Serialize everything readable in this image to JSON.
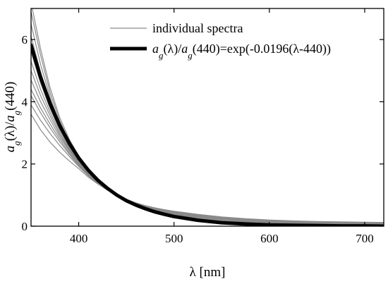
{
  "chart_data": {
    "type": "line",
    "xlabel": "λ [nm]",
    "ylabel": {
      "parts": [
        {
          "text": "a",
          "italic": true
        },
        {
          "text": "g",
          "italic": true,
          "sub": true
        },
        {
          "text": "(λ)/",
          "italic": false
        },
        {
          "text": "a",
          "italic": true
        },
        {
          "text": "g",
          "italic": true,
          "sub": true
        },
        {
          "text": "(440)",
          "italic": false
        }
      ]
    },
    "xlim": [
      350,
      720
    ],
    "ylim": [
      0,
      7
    ],
    "xticks": [
      400,
      500,
      600,
      700
    ],
    "yticks": [
      0,
      2,
      4,
      6
    ],
    "xtick_labels": [
      "400",
      "500",
      "600",
      "700"
    ],
    "ytick_labels": [
      "0",
      "2",
      "4",
      "6"
    ],
    "grid": false,
    "legend": {
      "placement": "top-right",
      "entries": [
        {
          "series": "individual spectra",
          "label": "individual spectra",
          "style": "thin-gray"
        },
        {
          "series": "model",
          "label": "ag(λ)/ag(440)=exp(-0.0196(λ-440))",
          "style": "thick-black",
          "label_parts": [
            {
              "text": "a",
              "italic": true
            },
            {
              "text": "g",
              "italic": true,
              "sub": true
            },
            {
              "text": "(λ)/",
              "italic": false
            },
            {
              "text": "a",
              "italic": true
            },
            {
              "text": "g",
              "italic": true,
              "sub": true
            },
            {
              "text": "(440)=exp(-0.0196(λ-440))",
              "italic": false
            }
          ]
        }
      ]
    },
    "x": [
      350,
      360,
      370,
      380,
      390,
      400,
      410,
      420,
      430,
      440,
      450,
      460,
      470,
      480,
      490,
      500,
      525,
      550,
      575,
      600,
      625,
      650,
      675,
      700,
      720
    ],
    "series": [
      {
        "name": "model",
        "role": "model",
        "color": "#000000",
        "values": [
          5.82,
          4.79,
          3.94,
          3.24,
          2.67,
          2.19,
          1.8,
          1.48,
          1.22,
          1.0,
          0.82,
          0.68,
          0.56,
          0.46,
          0.38,
          0.31,
          0.19,
          0.11,
          0.07,
          0.04,
          0.03,
          0.02,
          0.01,
          0.01,
          0.0
        ]
      },
      {
        "name": "individual spectra",
        "role": "individual",
        "color": "#8a8a8a",
        "values": [
          7.2,
          5.7,
          4.45,
          3.5,
          2.8,
          2.25,
          1.83,
          1.49,
          1.22,
          1.0,
          0.82,
          0.68,
          0.57,
          0.48,
          0.41,
          0.35,
          0.24,
          0.17,
          0.12,
          0.09,
          0.07,
          0.06,
          0.05,
          0.04,
          0.04
        ]
      },
      {
        "name": "individual spectra",
        "role": "individual",
        "color": "#8a8a8a",
        "values": [
          6.9,
          5.5,
          4.3,
          3.4,
          2.72,
          2.2,
          1.8,
          1.47,
          1.21,
          1.0,
          0.83,
          0.69,
          0.58,
          0.49,
          0.42,
          0.36,
          0.25,
          0.18,
          0.13,
          0.1,
          0.08,
          0.07,
          0.06,
          0.05,
          0.05
        ]
      },
      {
        "name": "individual spectra",
        "role": "individual",
        "color": "#8a8a8a",
        "values": [
          6.5,
          5.2,
          4.15,
          3.3,
          2.66,
          2.16,
          1.77,
          1.46,
          1.21,
          1.0,
          0.83,
          0.7,
          0.59,
          0.5,
          0.43,
          0.37,
          0.26,
          0.19,
          0.14,
          0.11,
          0.09,
          0.08,
          0.07,
          0.06,
          0.06
        ]
      },
      {
        "name": "individual spectra",
        "role": "individual",
        "color": "#8a8a8a",
        "values": [
          6.1,
          4.95,
          4.0,
          3.22,
          2.62,
          2.14,
          1.76,
          1.45,
          1.2,
          1.0,
          0.84,
          0.71,
          0.6,
          0.51,
          0.44,
          0.38,
          0.27,
          0.2,
          0.15,
          0.12,
          0.1,
          0.09,
          0.08,
          0.07,
          0.07
        ]
      },
      {
        "name": "individual spectra",
        "role": "individual",
        "color": "#8a8a8a",
        "values": [
          5.9,
          4.8,
          3.9,
          3.18,
          2.58,
          2.12,
          1.74,
          1.44,
          1.2,
          1.0,
          0.84,
          0.71,
          0.61,
          0.52,
          0.45,
          0.4,
          0.29,
          0.22,
          0.17,
          0.14,
          0.12,
          0.1,
          0.09,
          0.08,
          0.08
        ]
      },
      {
        "name": "individual spectra",
        "role": "individual",
        "color": "#8a8a8a",
        "values": [
          5.6,
          4.6,
          3.78,
          3.1,
          2.55,
          2.1,
          1.73,
          1.43,
          1.19,
          1.0,
          0.84,
          0.72,
          0.62,
          0.54,
          0.47,
          0.42,
          0.31,
          0.24,
          0.19,
          0.15,
          0.13,
          0.11,
          0.1,
          0.09,
          0.09
        ]
      },
      {
        "name": "individual spectra",
        "role": "individual",
        "color": "#8a8a8a",
        "values": [
          5.3,
          4.4,
          3.66,
          3.02,
          2.5,
          2.07,
          1.71,
          1.42,
          1.19,
          1.0,
          0.85,
          0.73,
          0.63,
          0.55,
          0.48,
          0.43,
          0.32,
          0.25,
          0.2,
          0.16,
          0.14,
          0.12,
          0.11,
          0.1,
          0.1
        ]
      },
      {
        "name": "individual spectra",
        "role": "individual",
        "color": "#8a8a8a",
        "values": [
          5.0,
          4.2,
          3.55,
          2.95,
          2.46,
          2.04,
          1.69,
          1.41,
          1.18,
          1.0,
          0.85,
          0.74,
          0.64,
          0.56,
          0.5,
          0.45,
          0.34,
          0.27,
          0.21,
          0.17,
          0.15,
          0.13,
          0.12,
          0.11,
          0.11
        ]
      },
      {
        "name": "individual spectra",
        "role": "individual",
        "color": "#8a8a8a",
        "values": [
          4.7,
          4.0,
          3.42,
          2.88,
          2.42,
          2.02,
          1.68,
          1.4,
          1.18,
          1.0,
          0.85,
          0.73,
          0.63,
          0.55,
          0.49,
          0.44,
          0.33,
          0.25,
          0.2,
          0.16,
          0.13,
          0.11,
          0.1,
          0.09,
          0.09
        ]
      },
      {
        "name": "individual spectra",
        "role": "individual",
        "color": "#8a8a8a",
        "values": [
          4.4,
          3.8,
          3.28,
          2.8,
          2.36,
          1.98,
          1.66,
          1.39,
          1.17,
          1.0,
          0.86,
          0.74,
          0.65,
          0.57,
          0.51,
          0.46,
          0.36,
          0.28,
          0.22,
          0.18,
          0.15,
          0.13,
          0.12,
          0.11,
          0.1
        ]
      },
      {
        "name": "individual spectra",
        "role": "individual",
        "color": "#8a8a8a",
        "values": [
          4.2,
          3.65,
          3.16,
          2.72,
          2.32,
          1.95,
          1.64,
          1.38,
          1.17,
          1.0,
          0.86,
          0.75,
          0.66,
          0.58,
          0.52,
          0.47,
          0.37,
          0.29,
          0.23,
          0.19,
          0.16,
          0.14,
          0.13,
          0.12,
          0.11
        ]
      },
      {
        "name": "individual spectra",
        "role": "individual",
        "color": "#8a8a8a",
        "values": [
          3.9,
          3.4,
          2.98,
          2.6,
          2.25,
          1.92,
          1.62,
          1.37,
          1.17,
          1.0,
          0.86,
          0.75,
          0.66,
          0.59,
          0.53,
          0.48,
          0.38,
          0.3,
          0.24,
          0.2,
          0.17,
          0.15,
          0.14,
          0.13,
          0.12
        ]
      },
      {
        "name": "individual spectra",
        "role": "individual",
        "color": "#8a8a8a",
        "values": [
          3.6,
          3.1,
          2.7,
          2.38,
          2.1,
          1.85,
          1.58,
          1.36,
          1.16,
          1.0,
          0.86,
          0.75,
          0.66,
          0.58,
          0.52,
          0.47,
          0.37,
          0.29,
          0.23,
          0.19,
          0.16,
          0.14,
          0.13,
          0.12,
          0.11
        ]
      }
    ]
  }
}
